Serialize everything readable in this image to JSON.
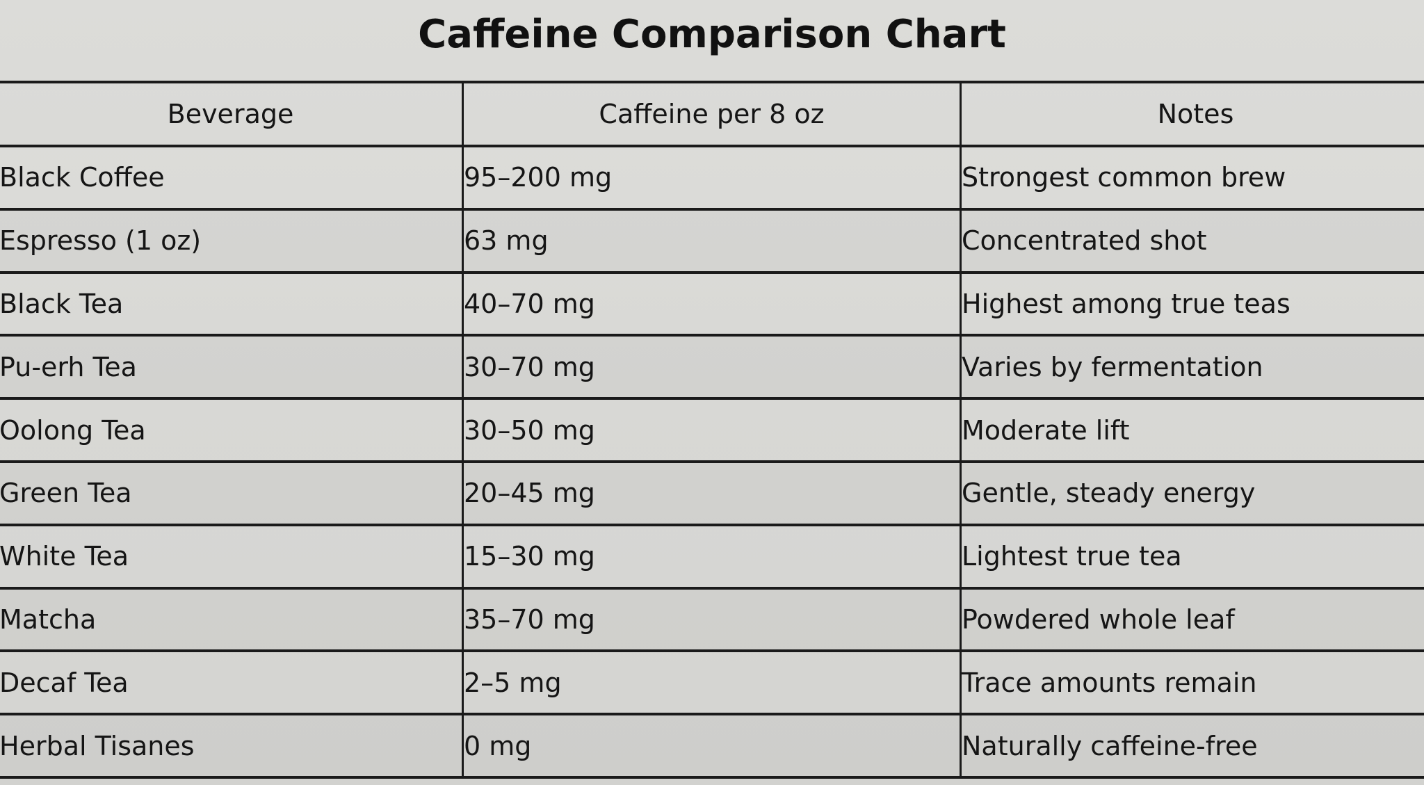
{
  "title": "Caffeine Comparison Chart",
  "table": {
    "headers": [
      "Beverage",
      "Caffeine per 8 oz",
      "Notes"
    ],
    "rows": [
      {
        "beverage": "Black Coffee",
        "caffeine": "95–200 mg",
        "notes": "Strongest common brew"
      },
      {
        "beverage": "Espresso (1 oz)",
        "caffeine": "63 mg",
        "notes": "Concentrated shot"
      },
      {
        "beverage": "Black Tea",
        "caffeine": "40–70 mg",
        "notes": "Highest among true teas"
      },
      {
        "beverage": "Pu-erh Tea",
        "caffeine": "30–70 mg",
        "notes": "Varies by fermentation"
      },
      {
        "beverage": "Oolong Tea",
        "caffeine": "30–50 mg",
        "notes": "Moderate lift"
      },
      {
        "beverage": "Green Tea",
        "caffeine": "20–45 mg",
        "notes": "Gentle, steady energy"
      },
      {
        "beverage": "White Tea",
        "caffeine": "15–30 mg",
        "notes": "Lightest true tea"
      },
      {
        "beverage": "Matcha",
        "caffeine": "35–70 mg",
        "notes": "Powdered whole leaf"
      },
      {
        "beverage": "Decaf Tea",
        "caffeine": "2–5 mg",
        "notes": "Trace amounts remain"
      },
      {
        "beverage": "Herbal Tisanes",
        "caffeine": "0 mg",
        "notes": "Naturally caffeine-free"
      }
    ]
  }
}
